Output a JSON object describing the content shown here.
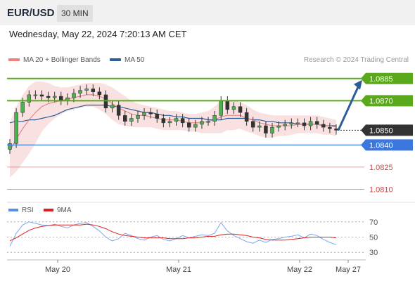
{
  "header": {
    "symbol": "EUR/USD",
    "timeframe": "30 MIN"
  },
  "datetime": "Wednesday, May 22, 2024 7:20:13 AM CET",
  "legend": {
    "bollinger": {
      "label": "MA 20 + Bollinger Bands",
      "color": "#f08080"
    },
    "ma50": {
      "label": "MA 50",
      "color": "#2e5c94"
    }
  },
  "credit": "Research © 2024 Trading Central",
  "chart_data": {
    "type": "line",
    "title": "",
    "price_axis_range": [
      1.0804,
      1.0893
    ],
    "candles_close": [
      1.0841,
      1.0862,
      1.0869,
      1.0874,
      1.0874,
      1.0873,
      1.0872,
      1.0873,
      1.087,
      1.0872,
      1.0875,
      1.0877,
      1.0878,
      1.0876,
      1.0874,
      1.0865,
      1.0867,
      1.086,
      1.0856,
      1.0858,
      1.086,
      1.0862,
      1.0861,
      1.0858,
      1.0855,
      1.0856,
      1.0858,
      1.0855,
      1.0852,
      1.0854,
      1.0856,
      1.0856,
      1.086,
      1.087,
      1.0864,
      1.0866,
      1.0862,
      1.0856,
      1.0852,
      1.0853,
      1.0848,
      1.0852,
      1.0853,
      1.0854,
      1.0855,
      1.0855,
      1.0853,
      1.0856,
      1.0854,
      1.0852,
      1.0851,
      1.085
    ],
    "ma20": [
      1.0836,
      1.0844,
      1.0851,
      1.0857,
      1.0862,
      1.0866,
      1.0868,
      1.0869,
      1.087,
      1.0871,
      1.0872,
      1.0873,
      1.0874,
      1.0874,
      1.0873,
      1.0871,
      1.0868,
      1.0865,
      1.0863,
      1.0861,
      1.086,
      1.086,
      1.0859,
      1.0858,
      1.0857,
      1.0857,
      1.0857,
      1.0856,
      1.0855,
      1.0855,
      1.0855,
      1.0856,
      1.0857,
      1.0859,
      1.086,
      1.086,
      1.086,
      1.0858,
      1.0857,
      1.0855,
      1.0854,
      1.0853,
      1.0853,
      1.0853,
      1.0853,
      1.0854,
      1.0854,
      1.0854,
      1.0854,
      1.0853,
      1.0853,
      1.0852
    ],
    "bb_upper": [
      1.0855,
      1.0866,
      1.0874,
      1.088,
      1.0883,
      1.0883,
      1.0882,
      1.088,
      1.0879,
      1.0879,
      1.088,
      1.0881,
      1.0882,
      1.0882,
      1.0882,
      1.0881,
      1.0879,
      1.0876,
      1.0873,
      1.087,
      1.0868,
      1.0867,
      1.0866,
      1.0865,
      1.0864,
      1.0863,
      1.0863,
      1.0862,
      1.0861,
      1.0861,
      1.0862,
      1.0863,
      1.0866,
      1.087,
      1.087,
      1.087,
      1.0869,
      1.0867,
      1.0864,
      1.0862,
      1.0861,
      1.086,
      1.086,
      1.086,
      1.086,
      1.086,
      1.086,
      1.086,
      1.086,
      1.0859,
      1.0858,
      1.0857
    ],
    "bb_lower": [
      1.0818,
      1.0822,
      1.0828,
      1.0834,
      1.0841,
      1.0849,
      1.0854,
      1.0858,
      1.0861,
      1.0863,
      1.0864,
      1.0865,
      1.0866,
      1.0866,
      1.0864,
      1.0861,
      1.0857,
      1.0854,
      1.0853,
      1.0852,
      1.0852,
      1.0852,
      1.0852,
      1.0851,
      1.085,
      1.085,
      1.085,
      1.085,
      1.0849,
      1.0849,
      1.0848,
      1.0848,
      1.0848,
      1.0848,
      1.085,
      1.085,
      1.0851,
      1.0849,
      1.0848,
      1.0846,
      1.0845,
      1.0845,
      1.0846,
      1.0846,
      1.0847,
      1.0848,
      1.0848,
      1.0848,
      1.0848,
      1.0847,
      1.0847,
      1.0846
    ],
    "ma50": [
      1.0855,
      1.0856,
      1.0856,
      1.0857,
      1.0857,
      1.0858,
      1.0859,
      1.086,
      1.0862,
      1.0864,
      1.0865,
      1.0866,
      1.0867,
      1.0867,
      1.0867,
      1.0867,
      1.0866,
      1.0866,
      1.0865,
      1.0864,
      1.0863,
      1.0862,
      1.0862,
      1.0861,
      1.086,
      1.086,
      1.0859,
      1.0859,
      1.0858,
      1.0858,
      1.0858,
      1.0857,
      1.0857,
      1.0857,
      1.0858,
      1.0858,
      1.0858,
      1.0858,
      1.0857,
      1.0857,
      1.0856,
      1.0856,
      1.0855,
      1.0855,
      1.0855,
      1.0854,
      1.0854,
      1.0854,
      1.0854,
      1.0853,
      1.0853,
      1.0853
    ],
    "levels": [
      {
        "label": "1.0885",
        "value": 1.0885,
        "color": "#5aa81b",
        "style": "solid-thick",
        "badge": true
      },
      {
        "label": "1.0870",
        "value": 1.087,
        "color": "#5aa81b",
        "style": "solid-thick",
        "badge": true
      },
      {
        "label": "1.0850",
        "value": 1.085,
        "color": "#333333",
        "style": "dotted",
        "badge": true
      },
      {
        "label": "1.0840",
        "value": 1.084,
        "color": "#3a78e0",
        "style": "solid",
        "badge": true
      },
      {
        "label": "1.0825",
        "value": 1.0825,
        "color": "#e03a3a",
        "style": "thin",
        "badge": false
      },
      {
        "label": "1.0810",
        "value": 1.081,
        "color": "#e03a3a",
        "style": "thin",
        "badge": false
      }
    ],
    "target_arrow": {
      "from": 1.085,
      "to": 1.0885
    },
    "x_ticks": [
      "May 20",
      "May 21",
      "May 22",
      "May 27"
    ],
    "rsi_panel": {
      "legend": [
        {
          "label": "RSI",
          "color": "#5b8de0"
        },
        {
          "label": "9MA",
          "color": "#e02020"
        }
      ],
      "ylim": [
        20,
        80
      ],
      "ticks": [
        "70",
        "50",
        "30"
      ],
      "rsi": [
        38,
        55,
        66,
        70,
        68,
        66,
        65,
        67,
        64,
        62,
        66,
        68,
        69,
        64,
        58,
        50,
        45,
        48,
        55,
        52,
        48,
        46,
        50,
        52,
        47,
        45,
        48,
        52,
        49,
        51,
        53,
        52,
        55,
        69,
        58,
        52,
        48,
        44,
        42,
        46,
        43,
        47,
        48,
        50,
        51,
        53,
        49,
        54,
        52,
        47,
        43,
        40
      ],
      "ma9": [
        45,
        49,
        54,
        59,
        62,
        64,
        65,
        66,
        66,
        66,
        66,
        66,
        67,
        66,
        64,
        61,
        57,
        54,
        52,
        51,
        50,
        49,
        49,
        49,
        49,
        48,
        48,
        48,
        49,
        49,
        50,
        51,
        51,
        53,
        54,
        54,
        53,
        52,
        50,
        49,
        47,
        46,
        46,
        46,
        47,
        48,
        49,
        50,
        50,
        50,
        50,
        49
      ]
    }
  }
}
